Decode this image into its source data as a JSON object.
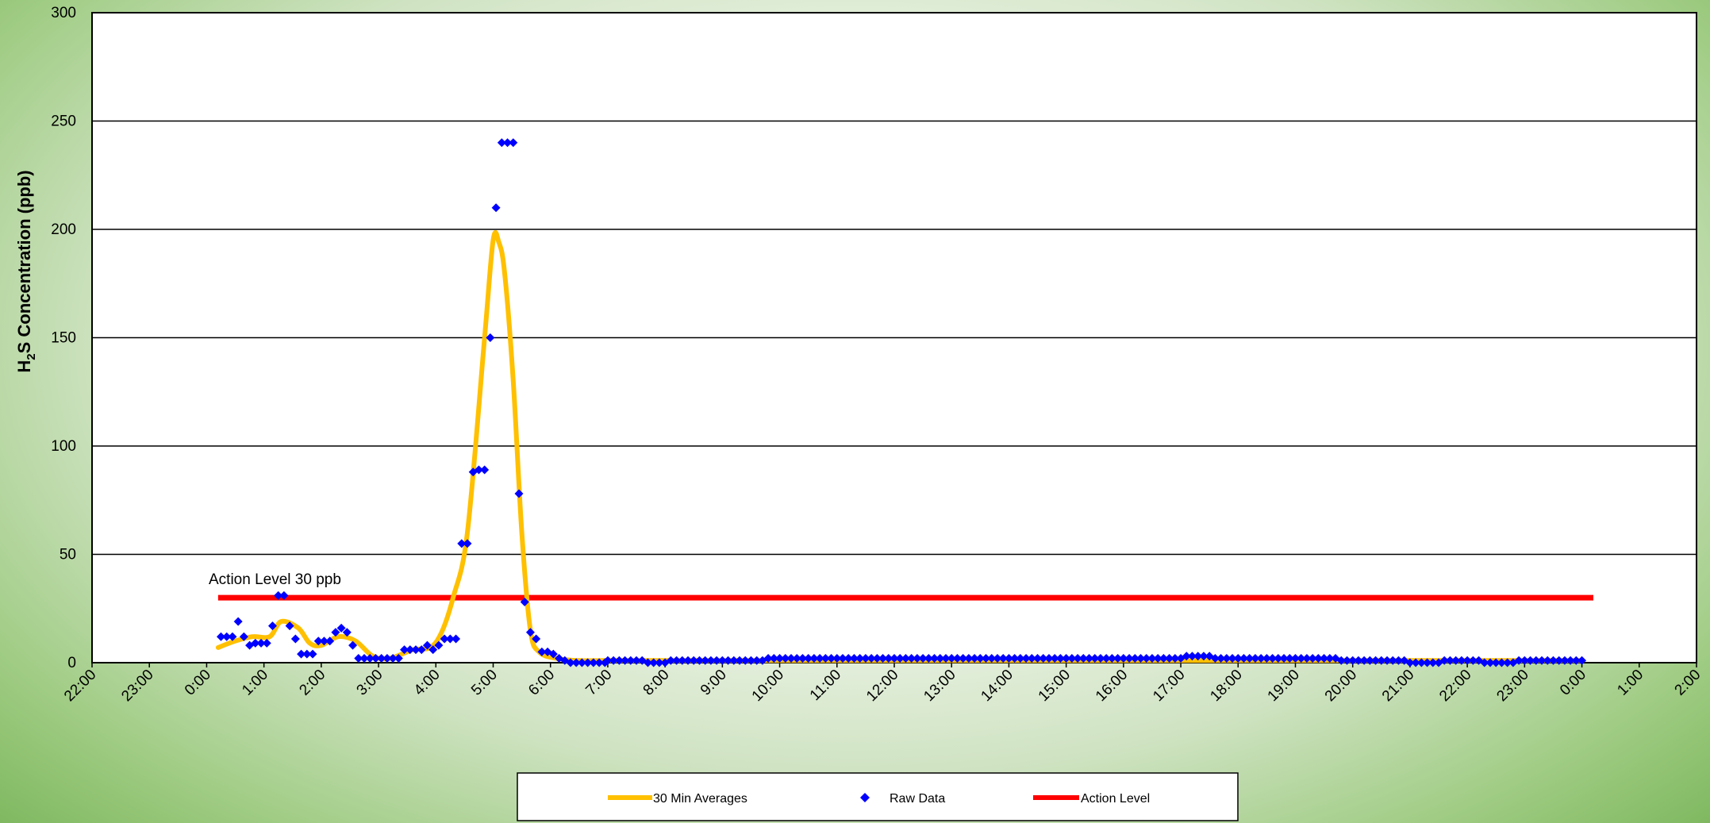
{
  "chart_data": {
    "type": "line",
    "y_axis": {
      "label_prefix": "H",
      "label_sub": "2",
      "label_suffix": "S Concentration (ppb)",
      "ylim": [
        0,
        300
      ],
      "ticks": [
        0,
        50,
        100,
        150,
        200,
        250,
        300
      ],
      "grid": true
    },
    "x_axis": {
      "unit": "hours",
      "xlim": [
        -2,
        26
      ],
      "tick_values": [
        -2,
        -1,
        0,
        1,
        2,
        3,
        4,
        5,
        6,
        7,
        8,
        9,
        10,
        11,
        12,
        13,
        14,
        15,
        16,
        17,
        18,
        19,
        20,
        21,
        22,
        23,
        24,
        25,
        26
      ],
      "tick_labels": [
        "22:00",
        "23:00",
        "0:00",
        "1:00",
        "2:00",
        "3:00",
        "4:00",
        "5:00",
        "6:00",
        "7:00",
        "8:00",
        "9:00",
        "10:00",
        "11:00",
        "12:00",
        "13:00",
        "14:00",
        "15:00",
        "16:00",
        "17:00",
        "18:00",
        "19:00",
        "20:00",
        "21:00",
        "22:00",
        "23:00",
        "0:00",
        "1:00",
        "2:00"
      ]
    },
    "annotation": "Action Level 30 ppb",
    "legend": {
      "placement": "bottom-center",
      "entries": [
        "30 Min Averages",
        "Raw Data",
        "Action Level"
      ]
    },
    "series": [
      {
        "name": "30 Min Averages",
        "type": "line",
        "color": "#ffc000",
        "x": [
          0.2,
          0.5,
          0.8,
          1.1,
          1.3,
          1.6,
          1.8,
          2.0,
          2.3,
          2.6,
          2.9,
          3.2,
          3.6,
          3.9,
          4.1,
          4.3,
          4.55,
          4.85,
          5.0,
          5.1,
          5.2,
          5.35,
          5.5,
          5.65,
          5.8,
          6.1,
          6.5,
          7.0,
          8.0,
          10.0,
          12.0,
          16.0,
          20.0,
          24.0
        ],
        "y": [
          7,
          10,
          12,
          12,
          19,
          16,
          9,
          8,
          12,
          10,
          3,
          2,
          6,
          7,
          14,
          30,
          60,
          150,
          195,
          194,
          180,
          130,
          60,
          15,
          5,
          2,
          1,
          1,
          1,
          1,
          1,
          1,
          1,
          1
        ]
      },
      {
        "name": "Raw Data",
        "type": "scatter",
        "color": "#0000ff",
        "x": [
          0.25,
          0.35,
          0.45,
          0.55,
          0.65,
          0.75,
          0.85,
          0.95,
          1.05,
          1.15,
          1.25,
          1.35,
          1.45,
          1.55,
          1.65,
          1.75,
          1.85,
          1.95,
          2.05,
          2.15,
          2.25,
          2.35,
          2.45,
          2.55,
          2.65,
          2.75,
          2.85,
          2.95,
          3.05,
          3.15,
          3.25,
          3.35,
          3.45,
          3.55,
          3.65,
          3.75,
          3.85,
          3.95,
          4.05,
          4.15,
          4.25,
          4.35,
          4.45,
          4.55,
          4.65,
          4.75,
          4.85,
          4.95,
          5.05,
          5.15,
          5.25,
          5.35,
          5.45,
          5.55,
          5.65,
          5.75,
          5.85,
          5.95,
          6.05,
          6.15,
          6.25,
          6.35,
          6.45,
          6.55,
          6.65,
          6.75,
          6.85,
          6.95
        ],
        "y": [
          12,
          12,
          12,
          19,
          12,
          8,
          9,
          9,
          9,
          17,
          31,
          31,
          17,
          11,
          4,
          4,
          4,
          10,
          10,
          10,
          14,
          16,
          14,
          8,
          2,
          2,
          2,
          2,
          2,
          2,
          2,
          2,
          6,
          6,
          6,
          6,
          8,
          6,
          8,
          11,
          11,
          11,
          55,
          55,
          88,
          89,
          89,
          150,
          210,
          240,
          240,
          240,
          78,
          28,
          14,
          11,
          5,
          5,
          4,
          2,
          1,
          0,
          0,
          0,
          0,
          0,
          0,
          0
        ],
        "baseline_after_7h": {
          "from": 7.0,
          "to": 24.0,
          "step": 0.1,
          "typical_value_range": [
            0,
            3
          ]
        }
      },
      {
        "name": "Action Level",
        "type": "line",
        "color": "#ff0000",
        "x": [
          0.2,
          24.2
        ],
        "y": [
          30,
          30
        ]
      }
    ]
  }
}
